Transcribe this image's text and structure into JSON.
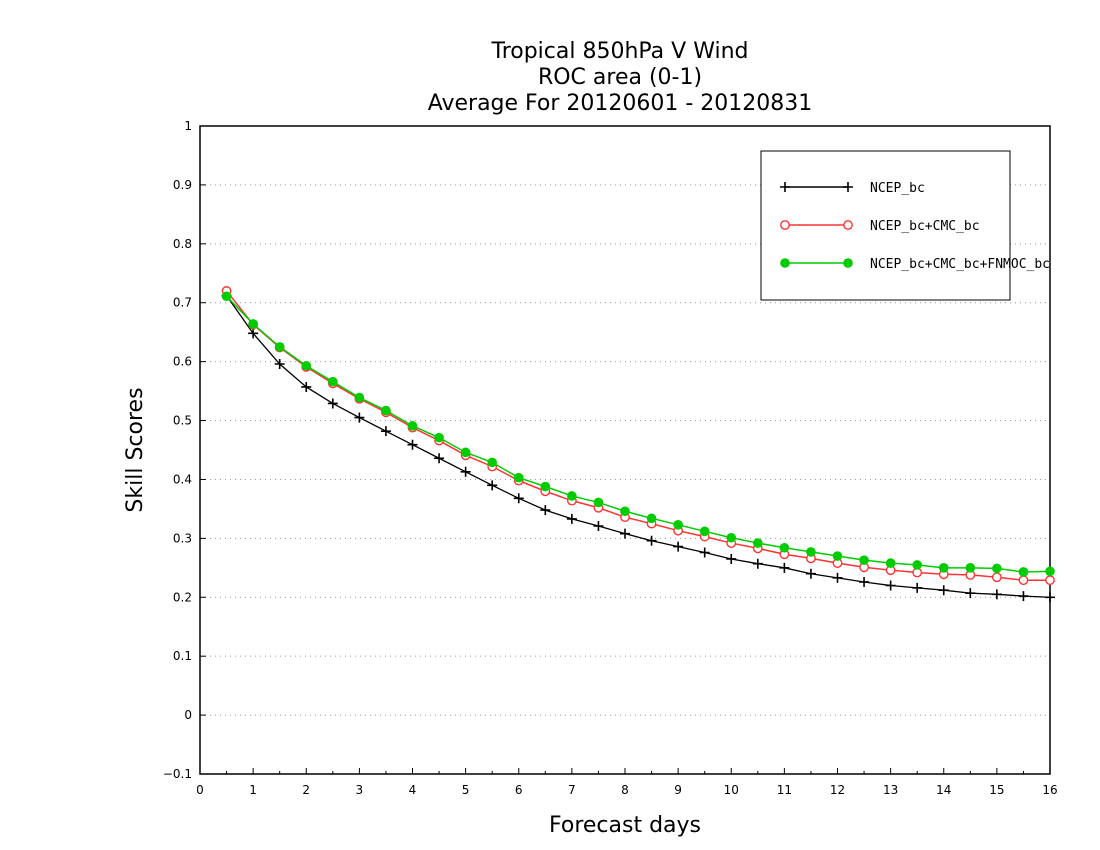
{
  "chart_data": {
    "type": "line",
    "title_lines": [
      "Tropical 850hPa V Wind",
      "ROC area (0-1)",
      "Average For 20120601 - 20120831"
    ],
    "xlabel": "Forecast days",
    "ylabel": "Skill Scores",
    "xlim": [
      0,
      16
    ],
    "ylim": [
      -0.1,
      1
    ],
    "xticks": [
      0,
      1,
      2,
      3,
      4,
      5,
      6,
      7,
      8,
      9,
      10,
      11,
      12,
      13,
      14,
      15,
      16
    ],
    "yticks": [
      -0.1,
      0,
      0.1,
      0.2,
      0.3,
      0.4,
      0.5,
      0.6,
      0.7,
      0.8,
      0.9,
      1
    ],
    "ytick_labels": [
      "−0.1",
      "0",
      "0.1",
      "0.2",
      "0.3",
      "0.4",
      "0.5",
      "0.6",
      "0.7",
      "0.8",
      "0.9",
      "1"
    ],
    "grid": "horizontal dotted",
    "legend_position": "top-right",
    "x": [
      0.5,
      1,
      1.5,
      2,
      2.5,
      3,
      3.5,
      4,
      4.5,
      5,
      5.5,
      6,
      6.5,
      7,
      7.5,
      8,
      8.5,
      9,
      9.5,
      10,
      10.5,
      11,
      11.5,
      12,
      12.5,
      13,
      13.5,
      14,
      14.5,
      15,
      15.5,
      16
    ],
    "series": [
      {
        "name": "NCEP_bc",
        "color": "#000000",
        "marker": "plus",
        "values": [
          0.712,
          0.648,
          0.596,
          0.557,
          0.529,
          0.505,
          0.482,
          0.459,
          0.436,
          0.413,
          0.39,
          0.368,
          0.348,
          0.333,
          0.321,
          0.308,
          0.296,
          0.286,
          0.276,
          0.265,
          0.257,
          0.25,
          0.24,
          0.233,
          0.226,
          0.22,
          0.216,
          0.212,
          0.207,
          0.205,
          0.202,
          0.2
        ]
      },
      {
        "name": "NCEP_bc+CMC_bc",
        "color": "#ff3333",
        "marker": "open-circle",
        "values": [
          0.72,
          0.663,
          0.624,
          0.591,
          0.563,
          0.537,
          0.514,
          0.488,
          0.466,
          0.441,
          0.422,
          0.398,
          0.38,
          0.364,
          0.352,
          0.336,
          0.325,
          0.313,
          0.303,
          0.292,
          0.283,
          0.273,
          0.266,
          0.258,
          0.251,
          0.246,
          0.242,
          0.239,
          0.238,
          0.234,
          0.229,
          0.229
        ]
      },
      {
        "name": "NCEP_bc+CMC_bc+FNMOC_bc",
        "color": "#00cc00",
        "marker": "filled-circle",
        "values": [
          0.711,
          0.664,
          0.625,
          0.593,
          0.566,
          0.539,
          0.517,
          0.491,
          0.471,
          0.446,
          0.429,
          0.403,
          0.388,
          0.372,
          0.361,
          0.346,
          0.334,
          0.323,
          0.312,
          0.301,
          0.292,
          0.284,
          0.277,
          0.27,
          0.263,
          0.258,
          0.255,
          0.25,
          0.25,
          0.249,
          0.243,
          0.244
        ]
      }
    ]
  }
}
